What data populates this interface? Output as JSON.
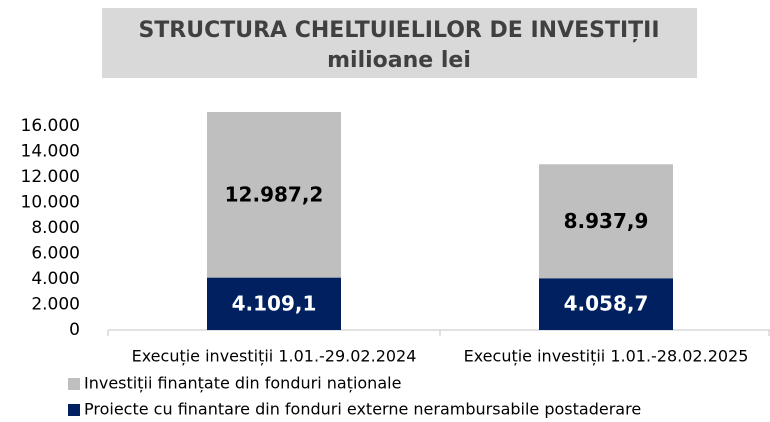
{
  "chart_data": {
    "type": "stacked_bar",
    "title": "STRUCTURA CHELTUIELILOR DE INVESTIȚII",
    "subtitle": "milioane lei",
    "categories": [
      "Execuție investiții  1.01.-29.02.2024",
      "Execuție investiții  1.01.-28.02.2025"
    ],
    "series": [
      {
        "name": "Investiții finanțate din fonduri naționale",
        "color": "#bfbfbf",
        "values": [
          12987.2,
          8937.9
        ],
        "value_labels": [
          "12.987,2",
          "8.937,9"
        ]
      },
      {
        "name": "Proiecte cu finantare din fonduri externe nerambursabile postaderare",
        "color": "#002060",
        "values": [
          4109.1,
          4058.7
        ],
        "value_labels": [
          "4.109,1",
          "4.058,7"
        ]
      }
    ],
    "ylim": [
      0,
      18000
    ],
    "yticks": [
      0,
      {
        "value": 2000,
        "label": "2.000"
      },
      {
        "value": 4000,
        "label": "4.000"
      },
      {
        "value": 6000,
        "label": "6.000"
      },
      {
        "value": 8000,
        "label": "8.000"
      },
      {
        "value": 10000,
        "label": "10.000"
      },
      {
        "value": 12000,
        "label": "12.000"
      },
      {
        "value": 14000,
        "label": "14.000"
      },
      {
        "value": 16000,
        "label": "16.000"
      }
    ]
  }
}
